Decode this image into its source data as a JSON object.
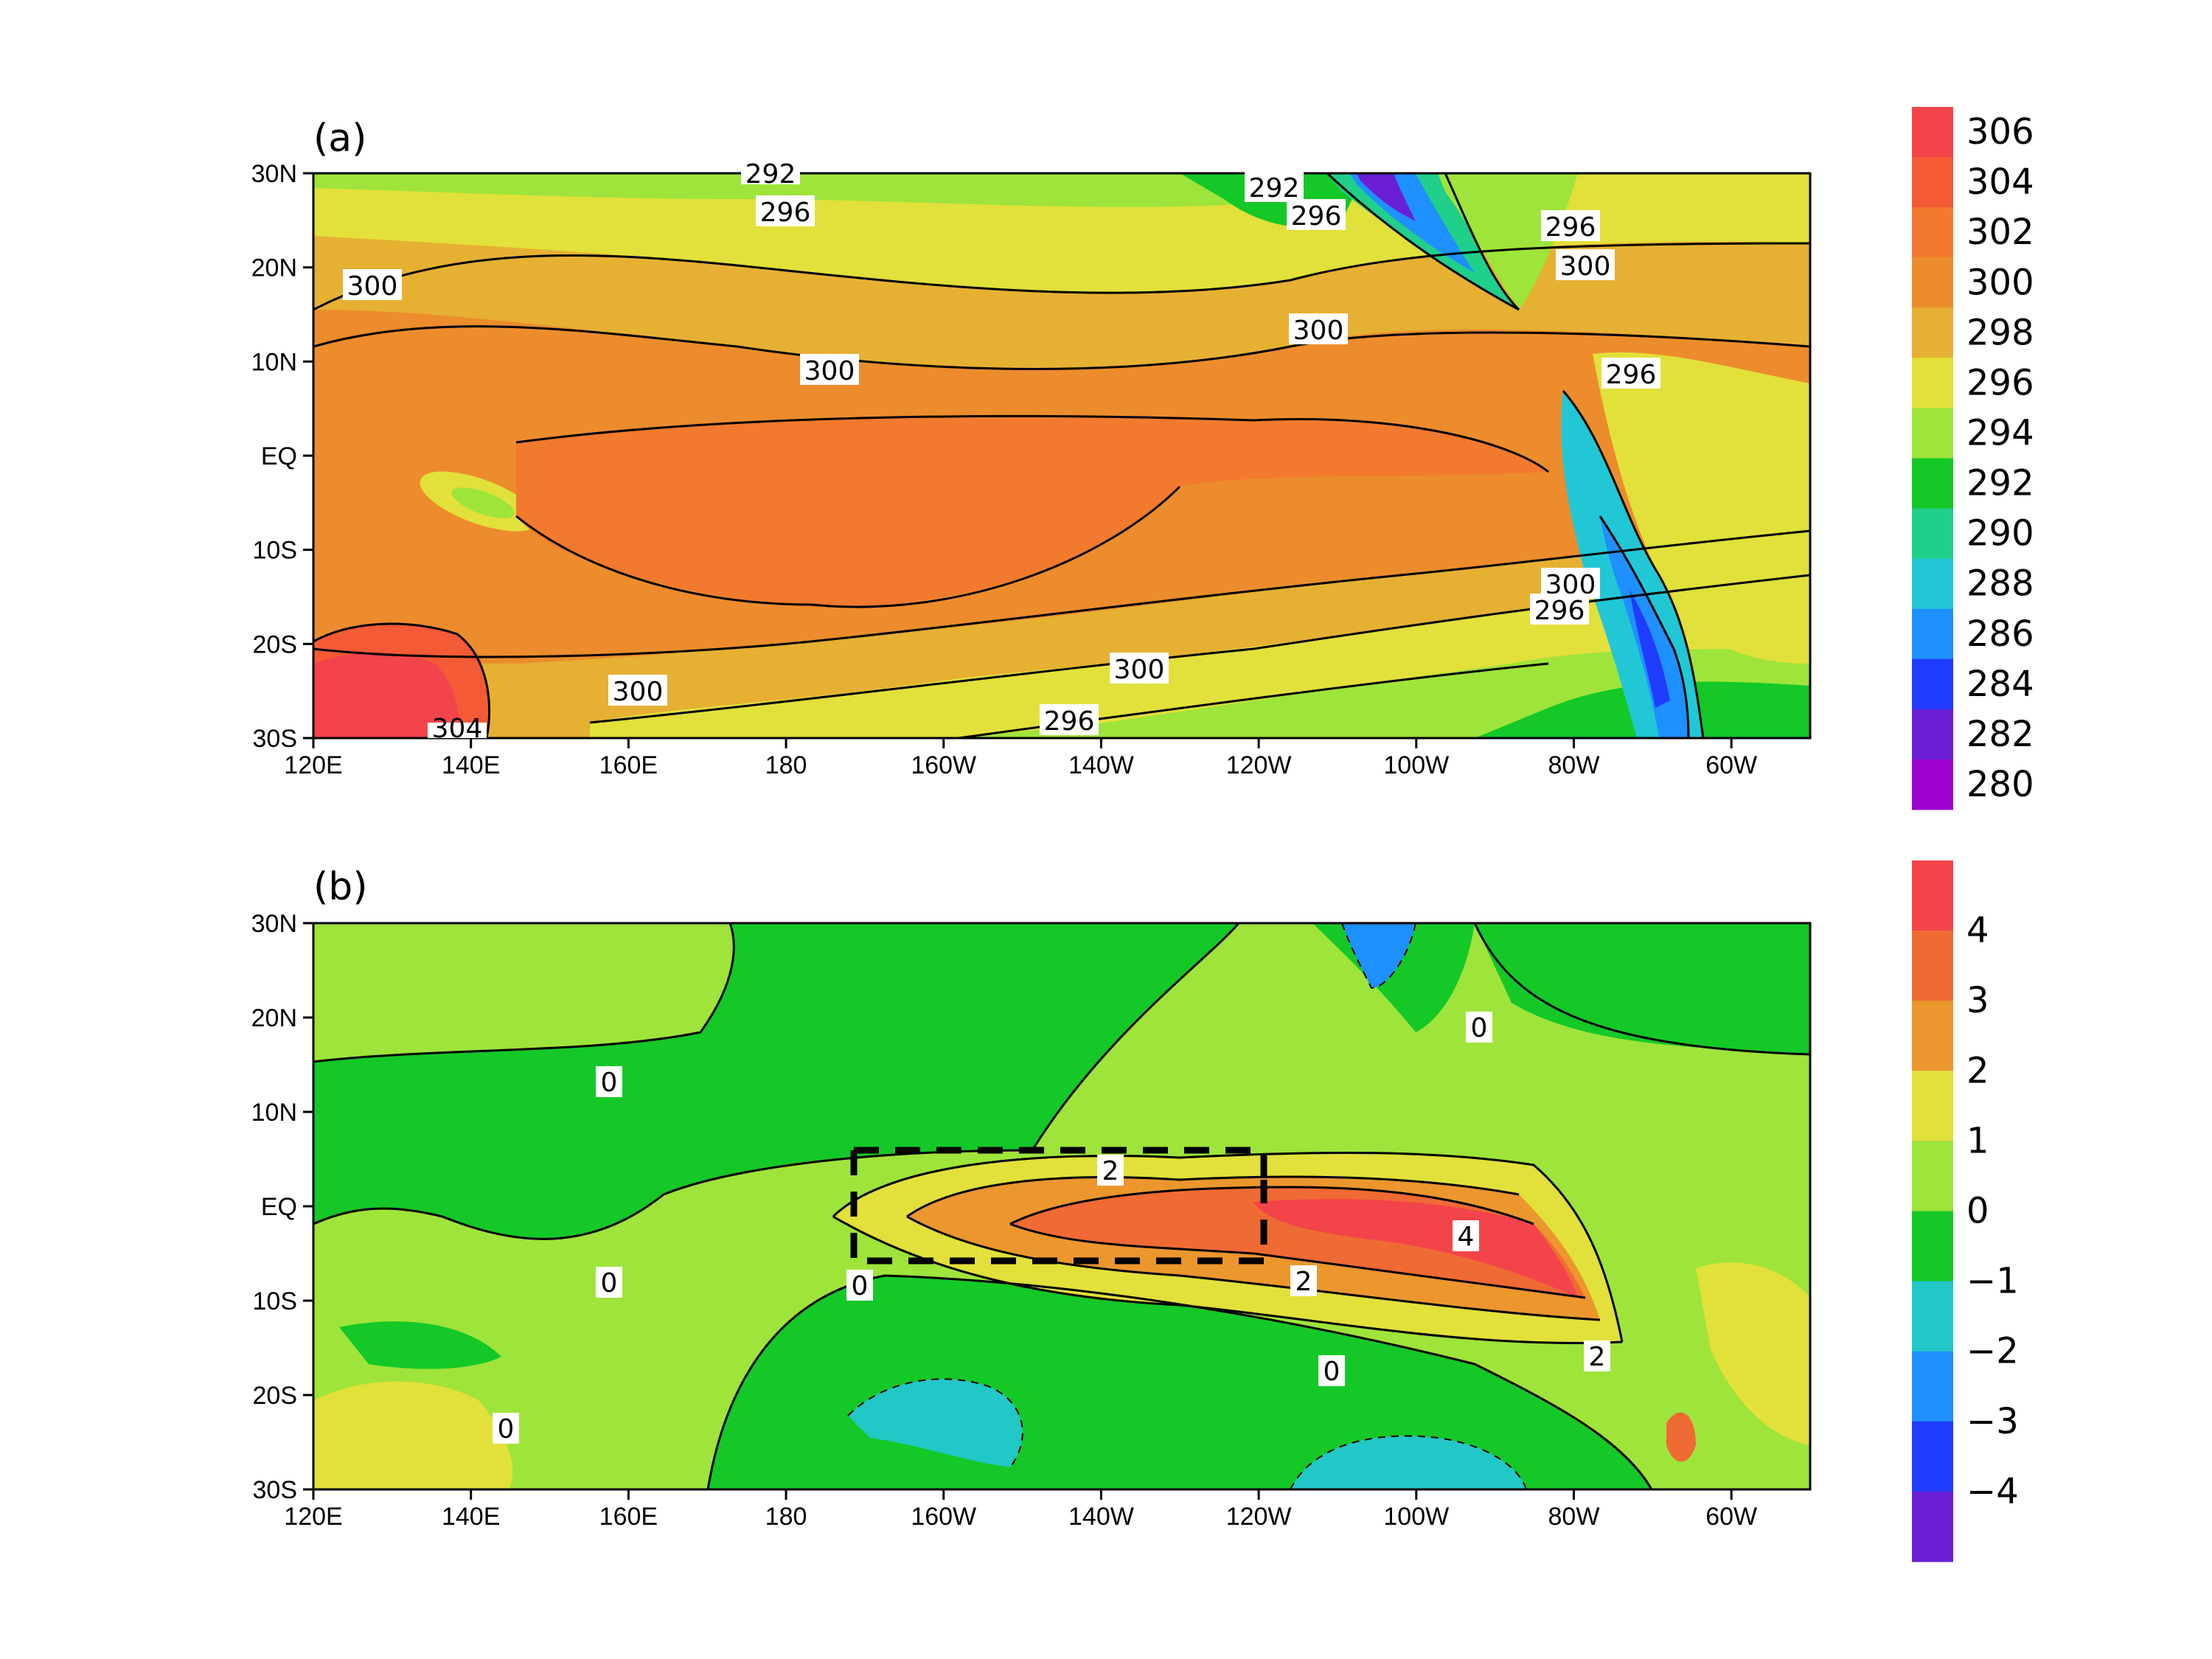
{
  "colors": {
    "sst_levels": [
      "#9e00d0",
      "#6a1fd6",
      "#1f3cff",
      "#1e90ff",
      "#22c7d6",
      "#1fcf8a",
      "#14c828",
      "#9ee43a",
      "#e2e03a",
      "#e6b033",
      "#ec8c2c",
      "#f27a2e",
      "#f55a36",
      "#f2444a"
    ],
    "anom_levels": [
      "#6a1fd6",
      "#1f3cff",
      "#1e90ff",
      "#22c7c7",
      "#14c828",
      "#9ee43a",
      "#e2e03a",
      "#ec962e",
      "#f06a34",
      "#f2444a"
    ],
    "coast": "#000000",
    "box": "#000000"
  },
  "panels": [
    {
      "id": "a",
      "tag": "(a)",
      "lat_labels": [
        "30N",
        "20N",
        "10N",
        "EQ",
        "10S",
        "20S",
        "30S"
      ],
      "lon_labels": [
        "120E",
        "140E",
        "160E",
        "180",
        "160W",
        "140W",
        "120W",
        "100W",
        "80W",
        "60W"
      ],
      "colorbar_labels": [
        "306",
        "304",
        "302",
        "300",
        "298",
        "296",
        "294",
        "292",
        "290",
        "288",
        "286",
        "284",
        "282",
        "280"
      ],
      "contour_labels": [
        "300",
        "300",
        "300",
        "300",
        "300",
        "300",
        "300",
        "296",
        "296",
        "296",
        "296",
        "296",
        "296",
        "292",
        "292",
        "304"
      ]
    },
    {
      "id": "b",
      "tag": "(b)",
      "lat_labels": [
        "30N",
        "20N",
        "10N",
        "EQ",
        "10S",
        "20S",
        "30S"
      ],
      "lon_labels": [
        "120E",
        "140E",
        "160E",
        "180",
        "160W",
        "140W",
        "120W",
        "100W",
        "80W",
        "60W"
      ],
      "colorbar_labels": [
        "4",
        "3",
        "2",
        "1",
        "0",
        "−1",
        "−2",
        "−3",
        "−4"
      ],
      "contour_labels": [
        "0",
        "0",
        "0",
        "0",
        "0",
        "0",
        "2",
        "2",
        "2",
        "4"
      ]
    }
  ],
  "chart_data": [
    {
      "type": "heatmap",
      "title": "",
      "xlabel": "",
      "ylabel": "",
      "xlim": [
        "120E",
        "50W"
      ],
      "ylim": [
        "30S",
        "30N"
      ],
      "colorbar_ticks": [
        280,
        282,
        284,
        286,
        288,
        290,
        292,
        294,
        296,
        298,
        300,
        302,
        304,
        306
      ],
      "contour_values_labeled": [
        292,
        296,
        300,
        304
      ]
    },
    {
      "type": "heatmap",
      "title": "",
      "xlabel": "",
      "ylabel": "",
      "xlim": [
        "120E",
        "50W"
      ],
      "ylim": [
        "30S",
        "30N"
      ],
      "colorbar_ticks": [
        -4,
        -3,
        -2,
        -1,
        0,
        1,
        2,
        3,
        4
      ],
      "contour_values_labeled": [
        0,
        2,
        4
      ],
      "box_region": {
        "lon": [
          "170W",
          "120W"
        ],
        "lat": [
          "5S",
          "5N"
        ]
      }
    }
  ]
}
